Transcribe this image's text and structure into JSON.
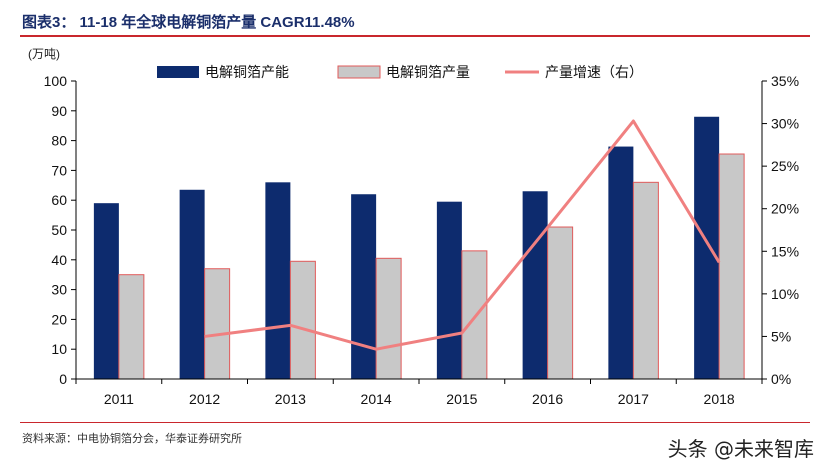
{
  "header": {
    "title": "图表3：   11-18 年全球电解铜箔产量 CAGR11.48%"
  },
  "footer": {
    "source": "资料来源：中电协铜箔分会，华泰证券研究所",
    "watermark": "头条 @未来智库"
  },
  "chart_data": {
    "type": "bar",
    "unit_label": "(万吨)",
    "categories": [
      "2011",
      "2012",
      "2013",
      "2014",
      "2015",
      "2016",
      "2017",
      "2018"
    ],
    "series": [
      {
        "name": "电解铜箔产能",
        "type": "bar",
        "axis": "left",
        "color": "#0d2b6e",
        "values": [
          59,
          63.5,
          66,
          62,
          59.5,
          63,
          78,
          88
        ]
      },
      {
        "name": "电解铜箔产量",
        "type": "bar",
        "axis": "left",
        "color": "#c8c8c8",
        "values": [
          35,
          37,
          39.5,
          40.5,
          43,
          51,
          66,
          75.5
        ]
      },
      {
        "name": "产量增速（右）",
        "type": "line",
        "axis": "right",
        "color": "#f08080",
        "values": [
          null,
          5.0,
          6.3,
          3.5,
          5.4,
          17.8,
          30.3,
          13.7
        ]
      }
    ],
    "y_left": {
      "min": 0,
      "max": 100,
      "ticks": [
        0,
        10,
        20,
        30,
        40,
        50,
        60,
        70,
        80,
        90,
        100
      ]
    },
    "y_right": {
      "min": 0,
      "max": 35,
      "ticks": [
        "0%",
        "5%",
        "10%",
        "15%",
        "20%",
        "25%",
        "30%",
        "35%"
      ]
    },
    "legend_position": "top"
  }
}
